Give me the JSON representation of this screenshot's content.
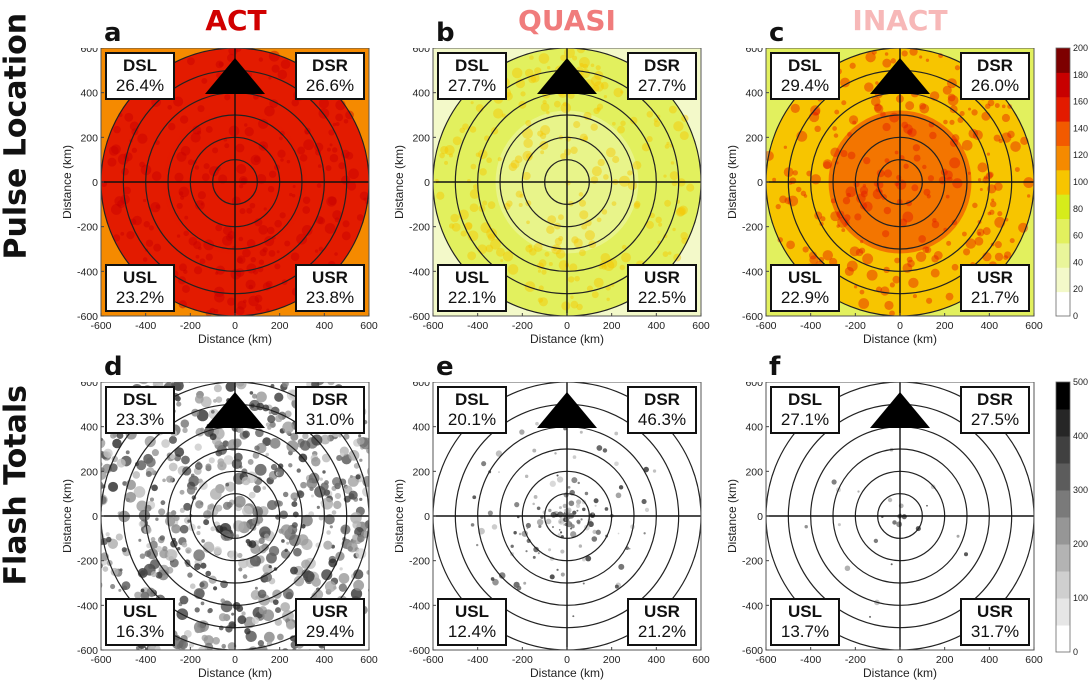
{
  "row_labels": [
    "Pulse Location",
    "Flash Totals"
  ],
  "column_titles": [
    {
      "text": "ACT",
      "color": "#d10000"
    },
    {
      "text": "QUASI",
      "color": "#f07c7c"
    },
    {
      "text": "INACT",
      "color": "#f7b8b8"
    }
  ],
  "axis": {
    "xlabel": "Distance (km)",
    "ylabel": "Distance (km)",
    "xticks": [
      "-600",
      "-400",
      "-200",
      "0",
      "200",
      "400",
      "600"
    ],
    "yticks": [
      "600",
      "400",
      "200",
      "0",
      "-200",
      "-400",
      "-600"
    ]
  },
  "chart_data": [
    {
      "panel": "a",
      "type": "heatmap",
      "row": "Pulse Location",
      "group": "ACT",
      "quadrants": {
        "DSL": "26.4%",
        "DSR": "26.6%",
        "USL": "23.2%",
        "USR": "23.8%"
      },
      "xlim": [
        -600,
        600
      ],
      "ylim": [
        -600,
        600
      ],
      "rings_km": [
        100,
        200,
        300,
        400,
        500,
        600
      ]
    },
    {
      "panel": "b",
      "type": "heatmap",
      "row": "Pulse Location",
      "group": "QUASI",
      "quadrants": {
        "DSL": "27.7%",
        "DSR": "27.7%",
        "USL": "22.1%",
        "USR": "22.5%"
      },
      "xlim": [
        -600,
        600
      ],
      "ylim": [
        -600,
        600
      ],
      "rings_km": [
        100,
        200,
        300,
        400,
        500,
        600
      ]
    },
    {
      "panel": "c",
      "type": "heatmap",
      "row": "Pulse Location",
      "group": "INACT",
      "quadrants": {
        "DSL": "29.4%",
        "DSR": "26.0%",
        "USL": "22.9%",
        "USR": "21.7%"
      },
      "xlim": [
        -600,
        600
      ],
      "ylim": [
        -600,
        600
      ],
      "rings_km": [
        100,
        200,
        300,
        400,
        500,
        600
      ]
    },
    {
      "panel": "d",
      "type": "heatmap",
      "row": "Flash Totals",
      "group": "ACT",
      "quadrants": {
        "DSL": "23.3%",
        "DSR": "31.0%",
        "USL": "16.3%",
        "USR": "29.4%"
      },
      "xlim": [
        -600,
        600
      ],
      "ylim": [
        -600,
        600
      ],
      "rings_km": [
        100,
        200,
        300,
        400,
        500,
        600
      ]
    },
    {
      "panel": "e",
      "type": "heatmap",
      "row": "Flash Totals",
      "group": "QUASI",
      "quadrants": {
        "DSL": "20.1%",
        "DSR": "46.3%",
        "USL": "12.4%",
        "USR": "21.2%"
      },
      "xlim": [
        -600,
        600
      ],
      "ylim": [
        -600,
        600
      ],
      "rings_km": [
        100,
        200,
        300,
        400,
        500,
        600
      ]
    },
    {
      "panel": "f",
      "type": "heatmap",
      "row": "Flash Totals",
      "group": "INACT",
      "quadrants": {
        "DSL": "27.1%",
        "DSR": "27.5%",
        "USL": "13.7%",
        "USR": "31.7%"
      },
      "xlim": [
        -600,
        600
      ],
      "ylim": [
        -600,
        600
      ],
      "rings_km": [
        100,
        200,
        300,
        400,
        500,
        600
      ]
    }
  ],
  "colorbars": [
    {
      "name": "pulse",
      "ticks": [
        "0",
        "20",
        "40",
        "60",
        "80",
        "100",
        "120",
        "140",
        "160",
        "180",
        "200"
      ],
      "colors": [
        "#ffffff",
        "#f3f9c9",
        "#e9f59a",
        "#e2f05e",
        "#d6ec1b",
        "#f7c500",
        "#f58a00",
        "#f25a00",
        "#e31b00",
        "#c80000",
        "#7d0000"
      ]
    },
    {
      "name": "flash",
      "ticks": [
        "0",
        "100",
        "200",
        "300",
        "400",
        "500"
      ],
      "colors": [
        "#ffffff",
        "#e6e6e6",
        "#cfcfcf",
        "#b3b3b3",
        "#969696",
        "#7a7a7a",
        "#5c5c5c",
        "#404040",
        "#262626",
        "#000000"
      ]
    }
  ],
  "panel_fills": {
    "a": {
      "base": "#e31b00",
      "inner": "#e31b00",
      "edge": "#f58a00",
      "speck": "#c80000"
    },
    "b": {
      "base": "#e2f05e",
      "inner": "#e9f59a",
      "edge": "#f3f9c9",
      "speck": "#f7c500"
    },
    "c": {
      "base": "#f7c500",
      "inner": "#f25a00",
      "edge": "#e2f05e",
      "speck": "#e31b00"
    },
    "d": {
      "base": "#ffffff",
      "speck": "#1a1a1a"
    },
    "e": {
      "base": "#ffffff",
      "speck": "#1a1a1a"
    },
    "f": {
      "base": "#ffffff",
      "speck": "#1a1a1a"
    }
  }
}
